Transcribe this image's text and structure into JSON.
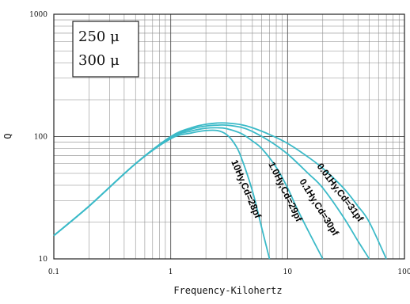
{
  "chart_data": {
    "type": "line",
    "title": "",
    "xlabel": "Frequency-Kilohertz",
    "ylabel": "Q",
    "xscale": "log",
    "yscale": "log",
    "xlim": [
      0.1,
      100
    ],
    "ylim": [
      10,
      1000
    ],
    "grid": true,
    "x_ticks": [
      "0.1",
      "1",
      "10",
      "100"
    ],
    "y_ticks": [
      "10",
      "100",
      "1000"
    ],
    "legend_box": [
      "250 μ",
      "300 μ"
    ],
    "line_color": "#3bbac8",
    "series": [
      {
        "name": "0.01Hy,Cd=31pf",
        "x": [
          0.1,
          0.2,
          0.5,
          1,
          1.5,
          2,
          2.5,
          3,
          4,
          5,
          7,
          10,
          15,
          20,
          30,
          40,
          50,
          70
        ],
        "y": [
          15.5,
          27,
          60,
          100,
          118,
          126,
          129,
          129,
          125,
          118,
          104,
          88,
          68,
          55,
          38,
          27,
          20,
          10
        ]
      },
      {
        "name": "0.1Hy,Cd=30pf",
        "x": [
          0.1,
          0.2,
          0.5,
          1,
          1.5,
          2,
          2.5,
          3,
          4,
          5,
          7,
          10,
          15,
          20,
          30,
          40,
          50
        ],
        "y": [
          15.5,
          27,
          60,
          99,
          115,
          122,
          124,
          124,
          119,
          110,
          92,
          72,
          50,
          38,
          22,
          14,
          10
        ]
      },
      {
        "name": "1.0Hy,Cd=29pf",
        "x": [
          0.1,
          0.2,
          0.5,
          1,
          1.5,
          2,
          2.5,
          3,
          4,
          5,
          6,
          8,
          10,
          12,
          15,
          20
        ],
        "y": [
          15.5,
          27,
          60,
          98,
          111,
          117,
          118,
          116,
          106,
          92,
          80,
          56,
          38,
          26,
          17,
          10
        ]
      },
      {
        "name": "10Hy,Cd=28pf",
        "x": [
          0.1,
          0.2,
          0.5,
          1,
          1.5,
          2,
          2.5,
          3,
          3.5,
          4,
          5,
          6,
          7
        ],
        "y": [
          15.5,
          27,
          60,
          96,
          107,
          112,
          112,
          104,
          88,
          68,
          36,
          18,
          10
        ]
      }
    ]
  }
}
